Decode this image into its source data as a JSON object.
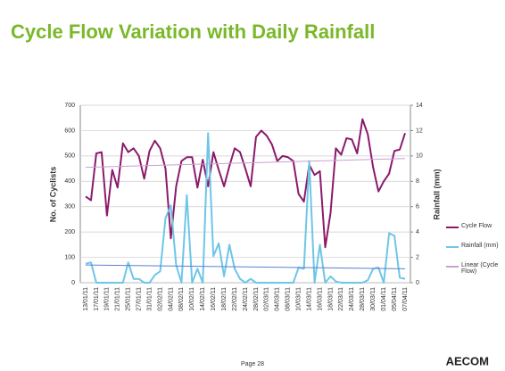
{
  "chart_data": {
    "type": "line",
    "title": "Cycle Flow Variation with Daily Rainfall",
    "y_label": "No. of Cyclists",
    "y2_label": "Rainfall (mm)",
    "categories": [
      "13/01/11",
      null,
      "17/01/11",
      null,
      "19/01/11",
      null,
      "21/01/11",
      null,
      "25/01/11",
      null,
      "27/01/11",
      null,
      "31/01/11",
      null,
      "02/02/11",
      null,
      "04/02/11",
      null,
      "08/02/11",
      null,
      "10/02/11",
      null,
      "14/02/11",
      null,
      "16/02/11",
      null,
      "18/02/11",
      null,
      "22/02/11",
      null,
      "24/02/11",
      null,
      "28/02/11",
      null,
      "02/03/11",
      null,
      "04/03/11",
      null,
      "08/03/11",
      null,
      "10/03/11",
      null,
      "14/03/11",
      null,
      "16/03/11",
      null,
      "18/03/11",
      null,
      "22/03/11",
      null,
      "24/03/11",
      null,
      "28/03/11",
      null,
      "30/03/11",
      null,
      "01/04/11",
      null,
      "05/04/11",
      null,
      "07/04/11"
    ],
    "series": [
      {
        "name": "Cycle Flow",
        "color": "#8b1a6b",
        "values": [
          340,
          325,
          510,
          515,
          265,
          445,
          375,
          550,
          515,
          530,
          500,
          410,
          520,
          560,
          530,
          450,
          175,
          380,
          480,
          495,
          495,
          375,
          485,
          380,
          515,
          445,
          380,
          460,
          530,
          515,
          450,
          380,
          575,
          600,
          580,
          545,
          480,
          500,
          495,
          480,
          350,
          320,
          465,
          425,
          440,
          140,
          275,
          530,
          505,
          570,
          565,
          510,
          645,
          585,
          455,
          360,
          400,
          430,
          520,
          525,
          590
        ]
      },
      {
        "name": "Rainfall (mm)",
        "color": "#6ec6e6",
        "axis": "y2",
        "values": [
          1.5,
          1.6,
          0,
          0,
          0,
          0,
          0,
          0,
          1.6,
          0.3,
          0.3,
          0,
          0,
          0.6,
          0.9,
          5.1,
          6.1,
          1.4,
          0,
          6.9,
          0,
          1.1,
          0,
          11.8,
          2.1,
          3.1,
          0.5,
          3,
          1.1,
          0.3,
          0,
          0.3,
          0,
          0,
          0,
          0,
          0,
          0,
          0,
          0,
          1.2,
          1.1,
          9.6,
          0,
          3,
          0,
          0.5,
          0.1,
          0,
          0,
          0,
          0,
          0,
          0.2,
          1.1,
          1.2,
          0,
          3.9,
          3.7,
          0.4,
          0.3
        ]
      }
    ],
    "trendlines": [
      {
        "name": "Linear (Cycle Flow)",
        "color": "#c9a0d0",
        "values": [
          455,
          490
        ]
      },
      {
        "color": "#5a7fd0",
        "axis": "y2",
        "values": [
          1.4,
          1.1
        ]
      }
    ],
    "ylim": [
      0,
      700
    ],
    "yticks": [
      0,
      100,
      200,
      300,
      400,
      500,
      600,
      700
    ],
    "y2lim": [
      0,
      14
    ],
    "y2ticks": [
      0,
      2,
      4,
      6,
      8,
      10,
      12,
      14
    ],
    "grid": true
  },
  "footer": {
    "page": "Page 28",
    "logo": "AECOM"
  }
}
